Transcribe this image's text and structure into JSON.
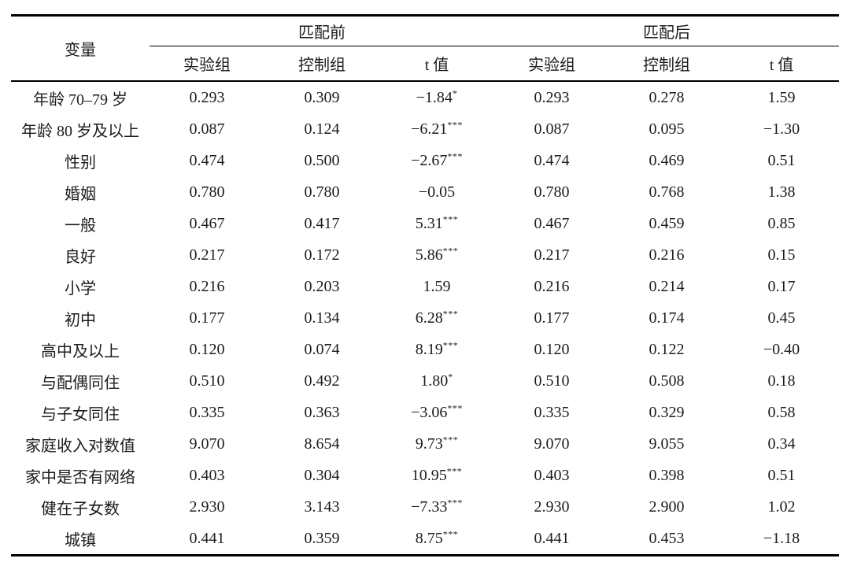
{
  "page": {
    "background": "#ffffff",
    "text_color": "#1c1c1c",
    "rule_color": "#000000"
  },
  "table": {
    "header": {
      "variable_label": "变量",
      "groups": [
        {
          "label": "匹配前"
        },
        {
          "label": "匹配后"
        }
      ],
      "sub_columns": [
        "实验组",
        "控制组",
        "t 值"
      ]
    },
    "rows": [
      {
        "label": "年龄 70–79 岁",
        "pre_treat": "0.293",
        "pre_control": "0.309",
        "pre_t": "−1.84",
        "pre_sig": "*",
        "post_treat": "0.293",
        "post_control": "0.278",
        "post_t": "1.59",
        "post_sig": ""
      },
      {
        "label": "年龄 80 岁及以上",
        "pre_treat": "0.087",
        "pre_control": "0.124",
        "pre_t": "−6.21",
        "pre_sig": "***",
        "post_treat": "0.087",
        "post_control": "0.095",
        "post_t": "−1.30",
        "post_sig": ""
      },
      {
        "label": "性别",
        "pre_treat": "0.474",
        "pre_control": "0.500",
        "pre_t": "−2.67",
        "pre_sig": "***",
        "post_treat": "0.474",
        "post_control": "0.469",
        "post_t": "0.51",
        "post_sig": ""
      },
      {
        "label": "婚姻",
        "pre_treat": "0.780",
        "pre_control": "0.780",
        "pre_t": "−0.05",
        "pre_sig": "",
        "post_treat": "0.780",
        "post_control": "0.768",
        "post_t": "1.38",
        "post_sig": ""
      },
      {
        "label": "一般",
        "pre_treat": "0.467",
        "pre_control": "0.417",
        "pre_t": "5.31",
        "pre_sig": "***",
        "post_treat": "0.467",
        "post_control": "0.459",
        "post_t": "0.85",
        "post_sig": ""
      },
      {
        "label": "良好",
        "pre_treat": "0.217",
        "pre_control": "0.172",
        "pre_t": "5.86",
        "pre_sig": "***",
        "post_treat": "0.217",
        "post_control": "0.216",
        "post_t": "0.15",
        "post_sig": ""
      },
      {
        "label": "小学",
        "pre_treat": "0.216",
        "pre_control": "0.203",
        "pre_t": "1.59",
        "pre_sig": "",
        "post_treat": "0.216",
        "post_control": "0.214",
        "post_t": "0.17",
        "post_sig": ""
      },
      {
        "label": "初中",
        "pre_treat": "0.177",
        "pre_control": "0.134",
        "pre_t": "6.28",
        "pre_sig": "***",
        "post_treat": "0.177",
        "post_control": "0.174",
        "post_t": "0.45",
        "post_sig": ""
      },
      {
        "label": "高中及以上",
        "pre_treat": "0.120",
        "pre_control": "0.074",
        "pre_t": "8.19",
        "pre_sig": "***",
        "post_treat": "0.120",
        "post_control": "0.122",
        "post_t": "−0.40",
        "post_sig": ""
      },
      {
        "label": "与配偶同住",
        "pre_treat": "0.510",
        "pre_control": "0.492",
        "pre_t": "1.80",
        "pre_sig": "*",
        "post_treat": "0.510",
        "post_control": "0.508",
        "post_t": "0.18",
        "post_sig": ""
      },
      {
        "label": "与子女同住",
        "pre_treat": "0.335",
        "pre_control": "0.363",
        "pre_t": "−3.06",
        "pre_sig": "***",
        "post_treat": "0.335",
        "post_control": "0.329",
        "post_t": "0.58",
        "post_sig": ""
      },
      {
        "label": "家庭收入对数值",
        "pre_treat": "9.070",
        "pre_control": "8.654",
        "pre_t": "9.73",
        "pre_sig": "***",
        "post_treat": "9.070",
        "post_control": "9.055",
        "post_t": "0.34",
        "post_sig": ""
      },
      {
        "label": "家中是否有网络",
        "pre_treat": "0.403",
        "pre_control": "0.304",
        "pre_t": "10.95",
        "pre_sig": "***",
        "post_treat": "0.403",
        "post_control": "0.398",
        "post_t": "0.51",
        "post_sig": ""
      },
      {
        "label": "健在子女数",
        "pre_treat": "2.930",
        "pre_control": "3.143",
        "pre_t": "−7.33",
        "pre_sig": "***",
        "post_treat": "2.930",
        "post_control": "2.900",
        "post_t": "1.02",
        "post_sig": ""
      },
      {
        "label": "城镇",
        "pre_treat": "0.441",
        "pre_control": "0.359",
        "pre_t": "8.75",
        "pre_sig": "***",
        "post_treat": "0.441",
        "post_control": "0.453",
        "post_t": "−1.18",
        "post_sig": ""
      }
    ]
  }
}
